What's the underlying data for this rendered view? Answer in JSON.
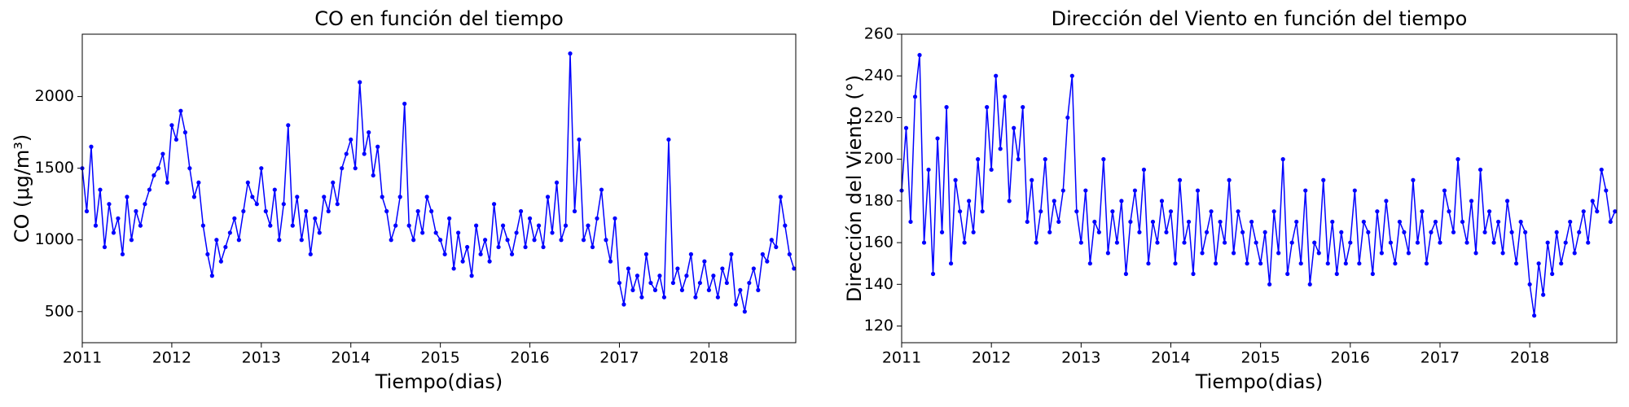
{
  "chart_data": [
    {
      "type": "line",
      "title": "CO en función del tiempo",
      "xlabel": "Tiempo(dias)",
      "ylabel": "CO (μg/m³)",
      "xlim": [
        2011,
        2018.97
      ],
      "xticks": [
        2011,
        2012,
        2013,
        2014,
        2015,
        2016,
        2017,
        2018
      ],
      "ylim": [
        283,
        2435
      ],
      "yticks": [
        500,
        1000,
        1500,
        2000
      ],
      "color": "#0000ff",
      "x": [
        2011,
        2011.05,
        2011.1,
        2011.15,
        2011.2,
        2011.25,
        2011.3,
        2011.35,
        2011.4,
        2011.45,
        2011.5,
        2011.55,
        2011.6,
        2011.65,
        2011.7,
        2011.75,
        2011.8,
        2011.85,
        2011.9,
        2011.95,
        2012,
        2012.05,
        2012.1,
        2012.15,
        2012.2,
        2012.25,
        2012.3,
        2012.35,
        2012.4,
        2012.45,
        2012.5,
        2012.55,
        2012.6,
        2012.65,
        2012.7,
        2012.75,
        2012.8,
        2012.85,
        2012.9,
        2012.95,
        2013,
        2013.05,
        2013.1,
        2013.15,
        2013.2,
        2013.25,
        2013.3,
        2013.35,
        2013.4,
        2013.45,
        2013.5,
        2013.55,
        2013.6,
        2013.65,
        2013.7,
        2013.75,
        2013.8,
        2013.85,
        2013.9,
        2013.95,
        2014,
        2014.05,
        2014.1,
        2014.15,
        2014.2,
        2014.25,
        2014.3,
        2014.35,
        2014.4,
        2014.45,
        2014.5,
        2014.55,
        2014.6,
        2014.65,
        2014.7,
        2014.75,
        2014.8,
        2014.85,
        2014.9,
        2014.95,
        2015,
        2015.05,
        2015.1,
        2015.15,
        2015.2,
        2015.25,
        2015.3,
        2015.35,
        2015.4,
        2015.45,
        2015.5,
        2015.55,
        2015.6,
        2015.65,
        2015.7,
        2015.75,
        2015.8,
        2015.85,
        2015.9,
        2015.95,
        2016,
        2016.05,
        2016.1,
        2016.15,
        2016.2,
        2016.25,
        2016.3,
        2016.35,
        2016.4,
        2016.45,
        2016.5,
        2016.55,
        2016.6,
        2016.65,
        2016.7,
        2016.75,
        2016.8,
        2016.85,
        2016.9,
        2016.95,
        2017,
        2017.05,
        2017.1,
        2017.15,
        2017.2,
        2017.25,
        2017.3,
        2017.35,
        2017.4,
        2017.45,
        2017.5,
        2017.55,
        2017.6,
        2017.65,
        2017.7,
        2017.75,
        2017.8,
        2017.85,
        2017.9,
        2017.95,
        2018,
        2018.05,
        2018.1,
        2018.15,
        2018.2,
        2018.25,
        2018.3,
        2018.35,
        2018.4,
        2018.45,
        2018.5,
        2018.55,
        2018.6,
        2018.65,
        2018.7,
        2018.75,
        2018.8,
        2018.85,
        2018.9,
        2018.95
      ],
      "values": [
        1500,
        1200,
        1650,
        1100,
        1350,
        950,
        1250,
        1050,
        1150,
        900,
        1300,
        1000,
        1200,
        1100,
        1250,
        1350,
        1450,
        1500,
        1600,
        1400,
        1800,
        1700,
        1900,
        1750,
        1500,
        1300,
        1400,
        1100,
        900,
        750,
        1000,
        850,
        950,
        1050,
        1150,
        1000,
        1200,
        1400,
        1300,
        1250,
        1500,
        1200,
        1100,
        1350,
        1000,
        1250,
        1800,
        1100,
        1300,
        1000,
        1200,
        900,
        1150,
        1050,
        1300,
        1200,
        1400,
        1250,
        1500,
        1600,
        1700,
        1500,
        2100,
        1600,
        1750,
        1450,
        1650,
        1300,
        1200,
        1000,
        1100,
        1300,
        1950,
        1100,
        1000,
        1200,
        1050,
        1300,
        1200,
        1050,
        1000,
        900,
        1150,
        800,
        1050,
        850,
        950,
        750,
        1100,
        900,
        1000,
        850,
        1250,
        950,
        1100,
        1000,
        900,
        1050,
        1200,
        950,
        1150,
        1000,
        1100,
        950,
        1300,
        1050,
        1400,
        1000,
        1100,
        2300,
        1200,
        1700,
        1000,
        1100,
        950,
        1150,
        1350,
        1000,
        850,
        1150,
        700,
        550,
        800,
        650,
        750,
        600,
        900,
        700,
        650,
        750,
        600,
        1700,
        700,
        800,
        650,
        750,
        900,
        600,
        700,
        850,
        650,
        750,
        600,
        800,
        700,
        900,
        550,
        650,
        500,
        700,
        800,
        650,
        900,
        850,
        1000,
        950,
        1300,
        1100,
        900,
        800
      ]
    },
    {
      "type": "line",
      "title": "Dirección del Viento en función del tiempo",
      "xlabel": "Tiempo(dias)",
      "ylabel": "Dirección del Viento (°)",
      "xlim": [
        2011,
        2018.97
      ],
      "xticks": [
        2011,
        2012,
        2013,
        2014,
        2015,
        2016,
        2017,
        2018
      ],
      "ylim": [
        112,
        260
      ],
      "yticks": [
        120,
        140,
        160,
        180,
        200,
        220,
        240,
        260
      ],
      "color": "#0000ff",
      "x": [
        2011,
        2011.05,
        2011.1,
        2011.15,
        2011.2,
        2011.25,
        2011.3,
        2011.35,
        2011.4,
        2011.45,
        2011.5,
        2011.55,
        2011.6,
        2011.65,
        2011.7,
        2011.75,
        2011.8,
        2011.85,
        2011.9,
        2011.95,
        2012,
        2012.05,
        2012.1,
        2012.15,
        2012.2,
        2012.25,
        2012.3,
        2012.35,
        2012.4,
        2012.45,
        2012.5,
        2012.55,
        2012.6,
        2012.65,
        2012.7,
        2012.75,
        2012.8,
        2012.85,
        2012.9,
        2012.95,
        2013,
        2013.05,
        2013.1,
        2013.15,
        2013.2,
        2013.25,
        2013.3,
        2013.35,
        2013.4,
        2013.45,
        2013.5,
        2013.55,
        2013.6,
        2013.65,
        2013.7,
        2013.75,
        2013.8,
        2013.85,
        2013.9,
        2013.95,
        2014,
        2014.05,
        2014.1,
        2014.15,
        2014.2,
        2014.25,
        2014.3,
        2014.35,
        2014.4,
        2014.45,
        2014.5,
        2014.55,
        2014.6,
        2014.65,
        2014.7,
        2014.75,
        2014.8,
        2014.85,
        2014.9,
        2014.95,
        2015,
        2015.05,
        2015.1,
        2015.15,
        2015.2,
        2015.25,
        2015.3,
        2015.35,
        2015.4,
        2015.45,
        2015.5,
        2015.55,
        2015.6,
        2015.65,
        2015.7,
        2015.75,
        2015.8,
        2015.85,
        2015.9,
        2015.95,
        2016,
        2016.05,
        2016.1,
        2016.15,
        2016.2,
        2016.25,
        2016.3,
        2016.35,
        2016.4,
        2016.45,
        2016.5,
        2016.55,
        2016.6,
        2016.65,
        2016.7,
        2016.75,
        2016.8,
        2016.85,
        2016.9,
        2016.95,
        2017,
        2017.05,
        2017.1,
        2017.15,
        2017.2,
        2017.25,
        2017.3,
        2017.35,
        2017.4,
        2017.45,
        2017.5,
        2017.55,
        2017.6,
        2017.65,
        2017.7,
        2017.75,
        2017.8,
        2017.85,
        2017.9,
        2017.95,
        2018,
        2018.05,
        2018.1,
        2018.15,
        2018.2,
        2018.25,
        2018.3,
        2018.35,
        2018.4,
        2018.45,
        2018.5,
        2018.55,
        2018.6,
        2018.65,
        2018.7,
        2018.75,
        2018.8,
        2018.85,
        2018.9,
        2018.95
      ],
      "values": [
        185,
        215,
        170,
        230,
        250,
        160,
        195,
        145,
        210,
        165,
        225,
        150,
        190,
        175,
        160,
        180,
        165,
        200,
        175,
        225,
        195,
        240,
        205,
        230,
        180,
        215,
        200,
        225,
        170,
        190,
        160,
        175,
        200,
        165,
        180,
        170,
        185,
        220,
        240,
        175,
        160,
        185,
        150,
        170,
        165,
        200,
        155,
        175,
        160,
        180,
        145,
        170,
        185,
        165,
        195,
        150,
        170,
        160,
        180,
        165,
        175,
        150,
        190,
        160,
        170,
        145,
        185,
        155,
        165,
        175,
        150,
        170,
        160,
        190,
        155,
        175,
        165,
        150,
        170,
        160,
        150,
        165,
        140,
        175,
        155,
        200,
        145,
        160,
        170,
        150,
        185,
        140,
        160,
        155,
        190,
        150,
        170,
        145,
        165,
        150,
        160,
        185,
        150,
        170,
        165,
        145,
        175,
        155,
        180,
        160,
        150,
        170,
        165,
        155,
        190,
        160,
        175,
        150,
        165,
        170,
        160,
        185,
        175,
        165,
        200,
        170,
        160,
        180,
        155,
        195,
        165,
        175,
        160,
        170,
        155,
        180,
        165,
        150,
        170,
        165,
        140,
        125,
        150,
        135,
        160,
        145,
        165,
        150,
        160,
        170,
        155,
        165,
        175,
        160,
        180,
        175,
        195,
        185,
        170,
        175
      ]
    }
  ]
}
